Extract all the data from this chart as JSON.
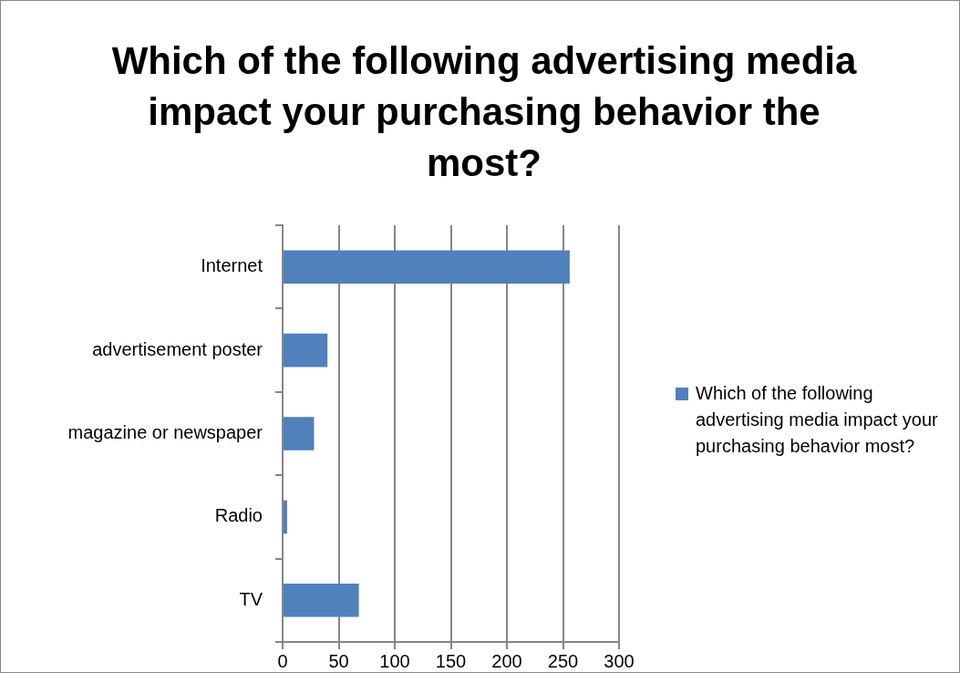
{
  "chart_data": {
    "type": "bar",
    "orientation": "horizontal",
    "title": "Which of the following advertising media impact your purchasing behavior the most?",
    "categories": [
      "Internet",
      "advertisement poster",
      "magazine or newspaper",
      "Radio",
      "TV"
    ],
    "series": [
      {
        "name": "Which of the following advertising media impact your purchasing behavior most?",
        "color": "#4f81bd",
        "values": [
          256,
          40,
          28,
          4,
          68
        ]
      }
    ],
    "xlim": [
      0,
      300
    ],
    "xticks": [
      0,
      50,
      100,
      150,
      200,
      250,
      300
    ],
    "grid": "x",
    "legend": "right"
  }
}
